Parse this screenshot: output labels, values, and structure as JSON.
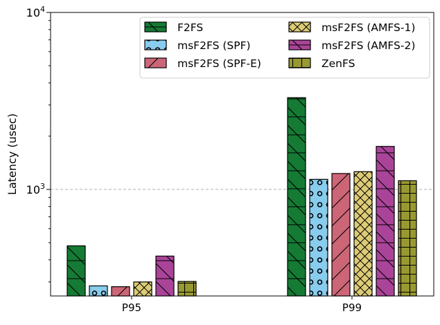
{
  "chart_data": {
    "type": "bar",
    "title": "",
    "xlabel": "",
    "ylabel": "Latency (usec)",
    "yscale": "log",
    "ylim": [
      250,
      10000
    ],
    "yticks": [
      {
        "value": 1000,
        "base": "10",
        "exp": "3"
      },
      {
        "value": 10000,
        "base": "10",
        "exp": "4"
      }
    ],
    "grid": "dashed horizontal line at 10^3",
    "legend_placement": "top-right",
    "legend_columns": 2,
    "categories": [
      "P95",
      "P99"
    ],
    "series": [
      {
        "name": "F2FS",
        "color": "#157a34",
        "hatch": "backslash",
        "values": [
          480,
          3300
        ]
      },
      {
        "name": "msF2FS (SPF)",
        "color": "#88ccee",
        "hatch": "circles",
        "values": [
          285,
          1140
        ]
      },
      {
        "name": "msF2FS (SPF-E)",
        "color": "#cc6677",
        "hatch": "slash",
        "values": [
          282,
          1230
        ]
      },
      {
        "name": "msF2FS (AMFS-1)",
        "color": "#ddcc77",
        "hatch": "crosshatch",
        "values": [
          300,
          1260
        ]
      },
      {
        "name": "msF2FS (AMFS-2)",
        "color": "#aa4499",
        "hatch": "backslash",
        "values": [
          420,
          1750
        ]
      },
      {
        "name": "ZenFS",
        "color": "#999933",
        "hatch": "grid",
        "values": [
          302,
          1120
        ]
      }
    ]
  }
}
